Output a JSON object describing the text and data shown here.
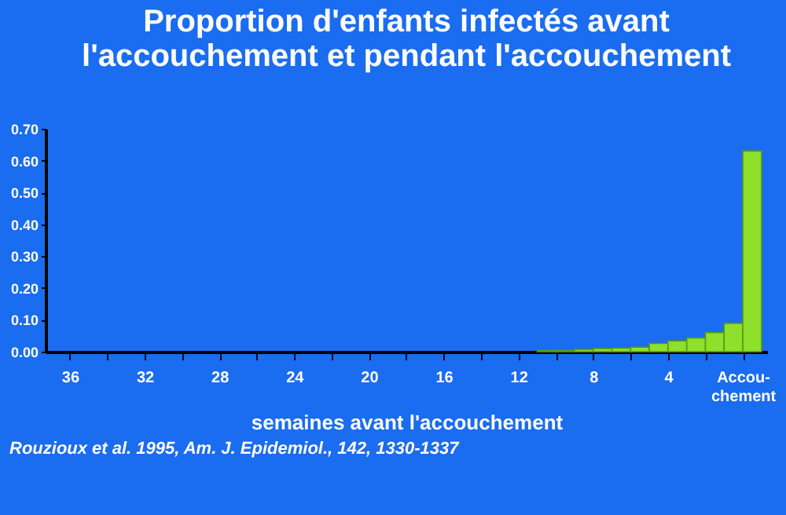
{
  "chart_data": {
    "type": "histogram",
    "title": "Proportion d'enfants infectés avant l'accouchement et pendant l'accouchement",
    "xlabel": "semaines avant l'accouchement",
    "bins": [
      11,
      10,
      9,
      8,
      7,
      6,
      5,
      4,
      3,
      2,
      1,
      0,
      -1
    ],
    "values": [
      0.004,
      0.004,
      0.007,
      0.01,
      0.011,
      0.014,
      0.026,
      0.034,
      0.043,
      0.06,
      0.089,
      0.63
    ],
    "color": "#8ee02a",
    "xlim": [
      37.3,
      -1.3
    ],
    "xticks": [
      36,
      {
        "value": 34,
        "label": null
      },
      32,
      {
        "value": 30,
        "label": null
      },
      28,
      {
        "value": 26,
        "label": null
      },
      24,
      {
        "value": 22,
        "label": null
      },
      20,
      {
        "value": 18,
        "label": null
      },
      16,
      {
        "value": 14,
        "label": null
      },
      12,
      {
        "value": 10,
        "label": null
      },
      8,
      {
        "value": 6,
        "label": null
      },
      4,
      {
        "value": 2,
        "label": null
      },
      {
        "value": 0,
        "label": "Accou-chement"
      }
    ],
    "ylim": [
      0,
      0.7
    ],
    "yticks": [
      {
        "value": 0,
        "label": "0.00"
      },
      {
        "value": 0.1,
        "label": "0.10"
      },
      {
        "value": 0.2,
        "label": "0.20"
      },
      {
        "value": 0.3,
        "label": "0.30"
      },
      {
        "value": 0.4,
        "label": "0.40"
      },
      {
        "value": 0.5,
        "label": "0.50"
      },
      {
        "value": 0.6,
        "label": "0.60"
      },
      {
        "value": 0.7,
        "label": "0.70"
      }
    ],
    "grid": false,
    "annotations": [
      "Rouzioux et al. 1995, Am. J. Epidemiol., 142, 1330-1337"
    ]
  }
}
